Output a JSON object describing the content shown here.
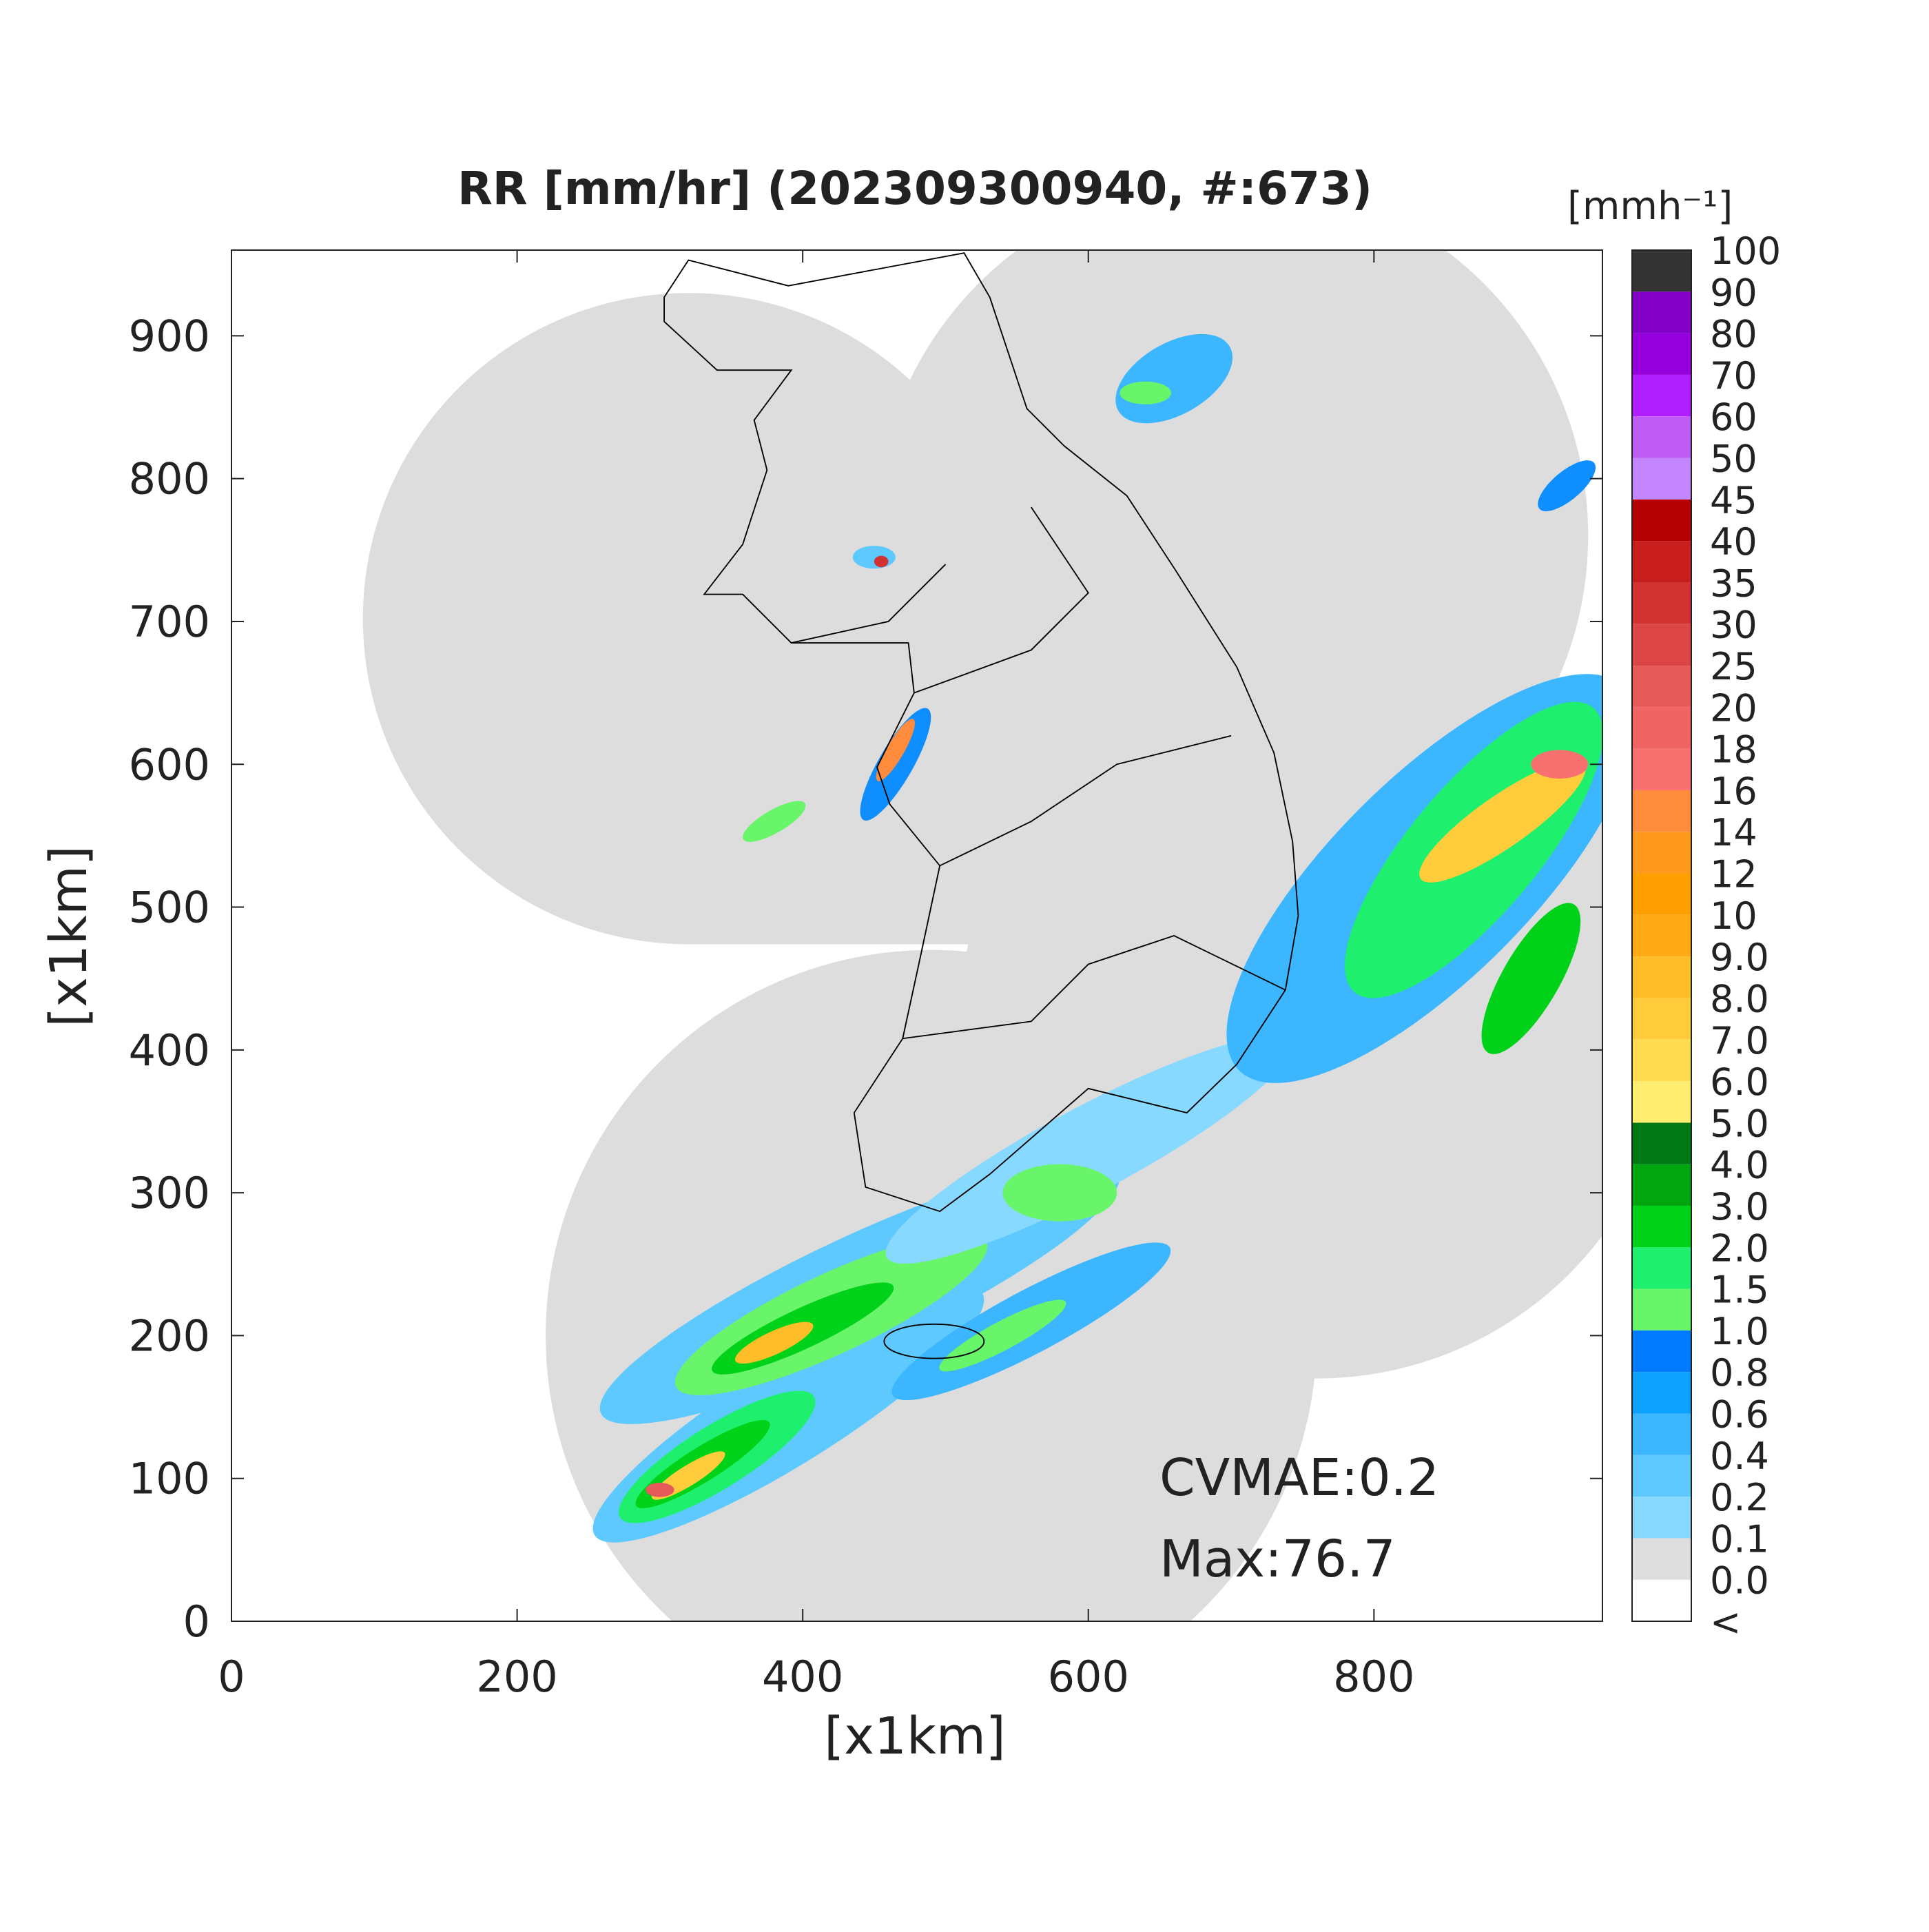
{
  "title": "RR [mm/hr] (202309300940, #:673)",
  "x_axis": {
    "label": "[x1km]",
    "lim": [
      0,
      960
    ],
    "ticks": [
      0,
      200,
      400,
      600,
      800
    ]
  },
  "y_axis": {
    "label": "[x1km]",
    "lim": [
      0,
      960
    ],
    "ticks": [
      0,
      100,
      200,
      300,
      400,
      500,
      600,
      700,
      800,
      900
    ]
  },
  "annotations": [
    "CVMAE:0.2",
    "Max:76.7"
  ],
  "colorbar": {
    "unit": "[mmh⁻¹]",
    "labels": [
      "<",
      "0.0",
      "0.1",
      "0.2",
      "0.4",
      "0.6",
      "0.8",
      "1.0",
      "1.5",
      "2.0",
      "3.0",
      "4.0",
      "5.0",
      "6.0",
      "7.0",
      "8.0",
      "9.0",
      "10",
      "12",
      "14",
      "16",
      "18",
      "20",
      "25",
      "30",
      "35",
      "40",
      "45",
      "50",
      "60",
      "70",
      "80",
      "90",
      "100"
    ],
    "colors": [
      "#ffffff",
      "#dddddd",
      "#87d9ff",
      "#5ec9ff",
      "#3bb6ff",
      "#0ea2ff",
      "#007bff",
      "#69f569",
      "#1ef06e",
      "#00d21a",
      "#00a50f",
      "#007814",
      "#ffee70",
      "#ffdc50",
      "#ffcd3c",
      "#ffbe28",
      "#ffaa14",
      "#ffa000",
      "#ff9a1e",
      "#ff8c3c",
      "#f87070",
      "#f06464",
      "#e65a5a",
      "#dc4646",
      "#d23232",
      "#c81e1e",
      "#b40000",
      "#c386ff",
      "#be5cf5",
      "#af1eff",
      "#9600dc",
      "#8200c8",
      "#333333"
    ]
  }
}
